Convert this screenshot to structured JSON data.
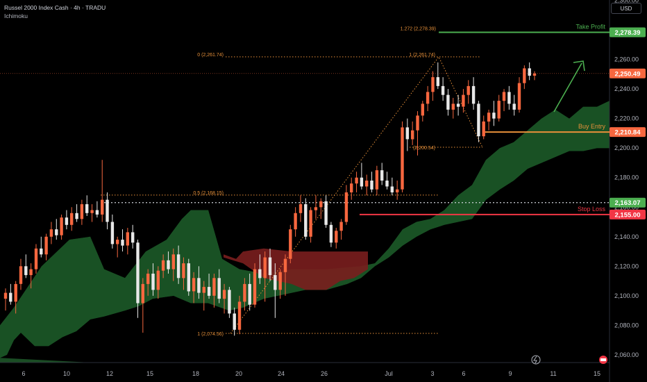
{
  "header": {
    "title": "Russel 2000 Index Cash · 4h · TRADU",
    "indicator": "Ichimoku",
    "currency": "USD"
  },
  "chart_data": {
    "type": "candlestick",
    "instrument": "Russel 2000 Index Cash",
    "timeframe": "4h",
    "y_axis": {
      "range": [
        2050,
        2305
      ],
      "ticks": [
        "2,060.00",
        "2,080.00",
        "2,100.00",
        "2,120.00",
        "2,140.00",
        "2,160.00",
        "2,180.00",
        "2,200.00",
        "2,220.00",
        "2,240.00",
        "2,260.00",
        "2,300.00"
      ]
    },
    "x_axis": {
      "ticks": [
        "6",
        "10",
        "12",
        "15",
        "18",
        "20",
        "24",
        "26",
        "Jul",
        "3",
        "6",
        "9",
        "11",
        "15"
      ]
    },
    "price_labels": [
      {
        "text": "2,278.39",
        "value": 2278.39,
        "color": "#4caf50"
      },
      {
        "text": "2,250.49",
        "value": 2250.49,
        "color": "#f7673f"
      },
      {
        "text": "2,210.84",
        "value": 2210.84,
        "color": "#f7673f"
      },
      {
        "text": "2,163.07",
        "value": 2163.07,
        "color": "#4caf50"
      },
      {
        "text": "2,155.00",
        "value": 2155.0,
        "color": "#f23645"
      }
    ],
    "levels": [
      {
        "label": "Take Profit",
        "value": 2278.39,
        "color": "#4caf50"
      },
      {
        "label": "Buy Entry",
        "value": 2210.84,
        "color": "#e8913a"
      },
      {
        "label": "Stop Loss",
        "value": 2155.0,
        "color": "#f23645"
      }
    ],
    "fib_labels": [
      {
        "text": "1.272 (2,278.39)",
        "value": 2278.39
      },
      {
        "text": "0 (2,261.74)",
        "value": 2261.74
      },
      {
        "text": "1 (2,261.74)",
        "value": 2261.74
      },
      {
        "text": "0.5 (2,168.15)",
        "value": 2168.15
      },
      {
        "text": "(2,200.54)",
        "value": 2200.54
      },
      {
        "text": "1 (2,074.56)",
        "value": 2074.56
      }
    ],
    "candles": [
      [
        2098,
        2105,
        2090,
        2102
      ],
      [
        2102,
        2108,
        2094,
        2096
      ],
      [
        2096,
        2110,
        2088,
        2108
      ],
      [
        2108,
        2125,
        2104,
        2120
      ],
      [
        2120,
        2128,
        2112,
        2114
      ],
      [
        2114,
        2122,
        2105,
        2118
      ],
      [
        2118,
        2135,
        2115,
        2132
      ],
      [
        2132,
        2140,
        2126,
        2128
      ],
      [
        2128,
        2142,
        2124,
        2140
      ],
      [
        2140,
        2150,
        2135,
        2145
      ],
      [
        2145,
        2152,
        2138,
        2141
      ],
      [
        2141,
        2155,
        2138,
        2153
      ],
      [
        2153,
        2158,
        2145,
        2148
      ],
      [
        2148,
        2160,
        2144,
        2156
      ],
      [
        2156,
        2162,
        2150,
        2152
      ],
      [
        2152,
        2165,
        2148,
        2162
      ],
      [
        2162,
        2168,
        2154,
        2156
      ],
      [
        2156,
        2162,
        2150,
        2158
      ],
      [
        2158,
        2164,
        2153,
        2155
      ],
      [
        2155,
        2192,
        2150,
        2165
      ],
      [
        2165,
        2170,
        2145,
        2150
      ],
      [
        2150,
        2155,
        2132,
        2135
      ],
      [
        2135,
        2140,
        2126,
        2138
      ],
      [
        2138,
        2145,
        2130,
        2134
      ],
      [
        2134,
        2146,
        2128,
        2143
      ],
      [
        2143,
        2148,
        2132,
        2136
      ],
      [
        2136,
        2138,
        2085,
        2095
      ],
      [
        2095,
        2112,
        2075,
        2108
      ],
      [
        2108,
        2118,
        2100,
        2115
      ],
      [
        2115,
        2122,
        2100,
        2104
      ],
      [
        2104,
        2120,
        2098,
        2117
      ],
      [
        2117,
        2128,
        2112,
        2124
      ],
      [
        2124,
        2130,
        2115,
        2118
      ],
      [
        2118,
        2132,
        2110,
        2128
      ],
      [
        2128,
        2134,
        2108,
        2112
      ],
      [
        2112,
        2126,
        2104,
        2122
      ],
      [
        2122,
        2125,
        2100,
        2103
      ],
      [
        2103,
        2116,
        2095,
        2112
      ],
      [
        2112,
        2120,
        2098,
        2102
      ],
      [
        2102,
        2110,
        2090,
        2106
      ],
      [
        2106,
        2115,
        2098,
        2100
      ],
      [
        2100,
        2115,
        2092,
        2112
      ],
      [
        2112,
        2118,
        2095,
        2098
      ],
      [
        2098,
        2108,
        2088,
        2104
      ],
      [
        2104,
        2106,
        2085,
        2088
      ],
      [
        2088,
        2092,
        2073,
        2077
      ],
      [
        2077,
        2100,
        2074,
        2096
      ],
      [
        2096,
        2112,
        2090,
        2108
      ],
      [
        2108,
        2115,
        2090,
        2094
      ],
      [
        2094,
        2122,
        2092,
        2118
      ],
      [
        2118,
        2128,
        2108,
        2112
      ],
      [
        2112,
        2130,
        2096,
        2126
      ],
      [
        2126,
        2132,
        2110,
        2114
      ],
      [
        2114,
        2122,
        2085,
        2104
      ],
      [
        2104,
        2118,
        2098,
        2116
      ],
      [
        2116,
        2128,
        2100,
        2125
      ],
      [
        2125,
        2148,
        2122,
        2145
      ],
      [
        2145,
        2160,
        2140,
        2156
      ],
      [
        2156,
        2168,
        2150,
        2162
      ],
      [
        2162,
        2166,
        2138,
        2140
      ],
      [
        2140,
        2160,
        2136,
        2158
      ],
      [
        2158,
        2168,
        2152,
        2160
      ],
      [
        2160,
        2166,
        2152,
        2164
      ],
      [
        2164,
        2168,
        2146,
        2148
      ],
      [
        2148,
        2150,
        2133,
        2136
      ],
      [
        2136,
        2146,
        2132,
        2144
      ],
      [
        2144,
        2152,
        2138,
        2150
      ],
      [
        2150,
        2175,
        2148,
        2170
      ],
      [
        2170,
        2180,
        2165,
        2176
      ],
      [
        2176,
        2184,
        2170,
        2180
      ],
      [
        2180,
        2190,
        2172,
        2174
      ],
      [
        2174,
        2182,
        2168,
        2178
      ],
      [
        2178,
        2184,
        2170,
        2172
      ],
      [
        2172,
        2188,
        2168,
        2185
      ],
      [
        2185,
        2190,
        2175,
        2178
      ],
      [
        2178,
        2184,
        2172,
        2174
      ],
      [
        2174,
        2180,
        2168,
        2170
      ],
      [
        2170,
        2178,
        2165,
        2172
      ],
      [
        2172,
        2218,
        2170,
        2214
      ],
      [
        2214,
        2220,
        2198,
        2206
      ],
      [
        2206,
        2218,
        2202,
        2212
      ],
      [
        2212,
        2225,
        2195,
        2222
      ],
      [
        2222,
        2232,
        2218,
        2230
      ],
      [
        2230,
        2242,
        2225,
        2238
      ],
      [
        2238,
        2252,
        2232,
        2248
      ],
      [
        2248,
        2258,
        2240,
        2242
      ],
      [
        2242,
        2248,
        2232,
        2236
      ],
      [
        2236,
        2240,
        2222,
        2226
      ],
      [
        2226,
        2234,
        2220,
        2230
      ],
      [
        2230,
        2236,
        2222,
        2228
      ],
      [
        2228,
        2240,
        2224,
        2236
      ],
      [
        2236,
        2246,
        2230,
        2242
      ],
      [
        2242,
        2248,
        2226,
        2230
      ],
      [
        2230,
        2232,
        2204,
        2208
      ],
      [
        2208,
        2222,
        2206,
        2218
      ],
      [
        2218,
        2226,
        2212,
        2224
      ],
      [
        2224,
        2232,
        2215,
        2220
      ],
      [
        2220,
        2236,
        2218,
        2232
      ],
      [
        2232,
        2240,
        2225,
        2238
      ],
      [
        2238,
        2242,
        2226,
        2230
      ],
      [
        2230,
        2236,
        2222,
        2226
      ],
      [
        2226,
        2248,
        2224,
        2244
      ],
      [
        2244,
        2256,
        2240,
        2254
      ],
      [
        2254,
        2258,
        2246,
        2249
      ],
      [
        2249,
        2252,
        2246,
        2250.49
      ]
    ]
  }
}
